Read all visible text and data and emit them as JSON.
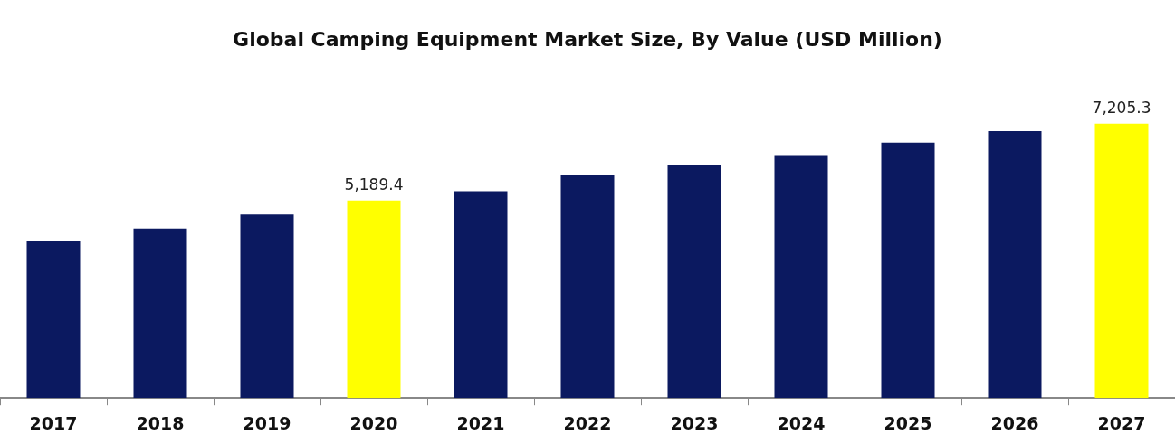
{
  "chart_data": {
    "type": "bar",
    "title": "Global Camping Equipment Market Size, By Value (USD Million)",
    "categories": [
      "2017",
      "2018",
      "2019",
      "2020",
      "2021",
      "2022",
      "2023",
      "2024",
      "2025",
      "2026",
      "2027"
    ],
    "values": [
      4140,
      4450,
      4820,
      5189.4,
      5430,
      5870,
      6130,
      6380,
      6710,
      7010,
      7205.3
    ],
    "colors": [
      "#0b1960",
      "#0b1960",
      "#0b1960",
      "#ffff00",
      "#0b1960",
      "#0b1960",
      "#0b1960",
      "#0b1960",
      "#0b1960",
      "#0b1960",
      "#ffff00"
    ],
    "value_labels": [
      null,
      null,
      null,
      "5,189.4",
      null,
      null,
      null,
      null,
      null,
      null,
      "7,205.3"
    ],
    "tick_labels": "x",
    "grid": false,
    "legend": false
  }
}
